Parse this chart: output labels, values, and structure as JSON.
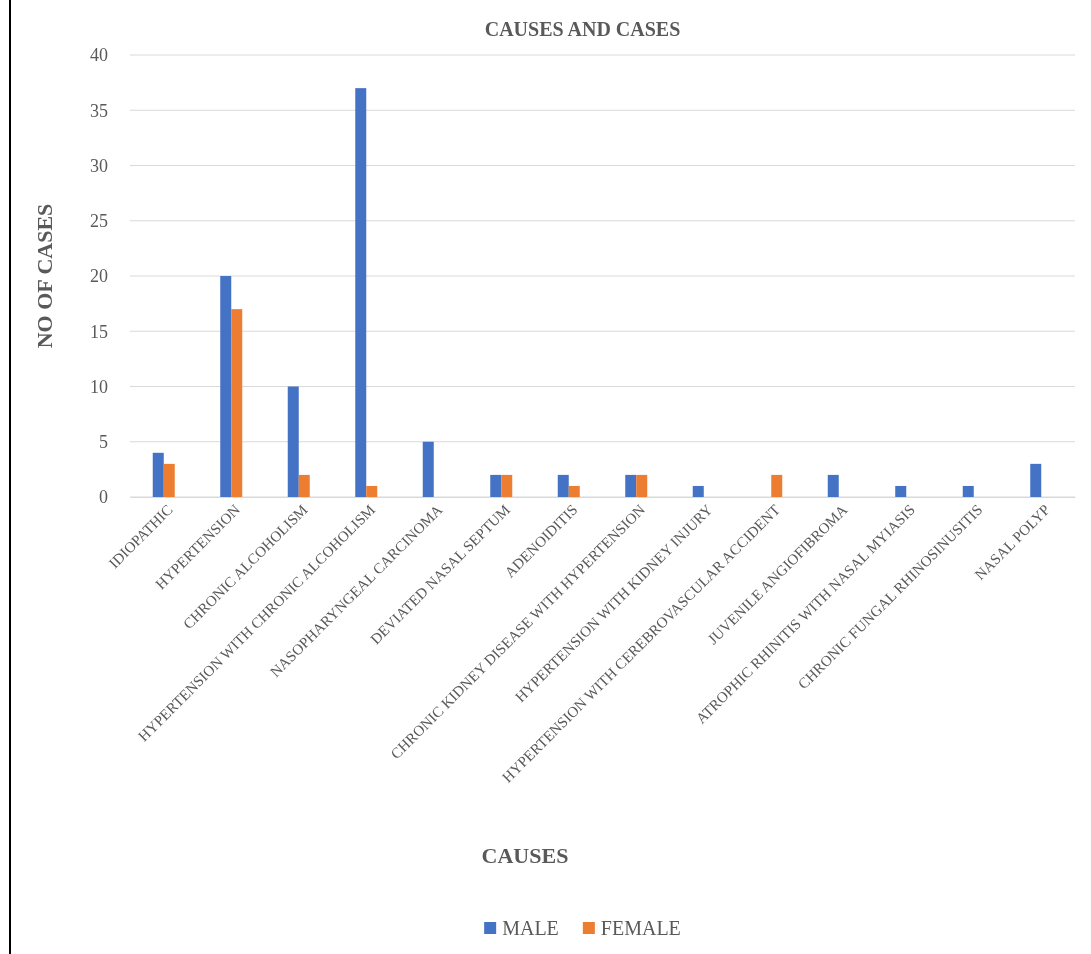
{
  "chart_data": {
    "type": "bar",
    "title": "CAUSES AND CASES",
    "xlabel": "CAUSES",
    "ylabel": "NO OF CASES",
    "categories": [
      "IDIOPATHIC",
      "HYPERTENSION",
      "CHRONIC ALCOHOLISM",
      "HYPERTENSION WITH CHRONIC ALCOHOLISM",
      "NASOPHARYNGEAL CARCINOMA",
      "DEVIATED NASAL SEPTUM",
      "ADENOIDITIS",
      "CHRONIC KIDNEY DISEASE WITH HYPERTENSION",
      "HYPERTENSION WITH KIDNEY INJURY",
      "HYPERTENSION WITH CEREBROVASCULAR ACCIDENT",
      "JUVENILE ANGIOFIBROMA",
      "ATROPHIC RHINITIS WITH NASAL MYIASIS",
      "CHRONIC FUNGAL RHINOSINUSITIS",
      "NASAL POLYP"
    ],
    "series": [
      {
        "name": "MALE",
        "color": "#4472c4",
        "values": [
          4,
          20,
          10,
          37,
          5,
          2,
          2,
          2,
          1,
          null,
          2,
          1,
          1,
          3
        ]
      },
      {
        "name": "FEMALE",
        "color": "#ed7d31",
        "values": [
          3,
          17,
          2,
          1,
          null,
          2,
          1,
          2,
          null,
          2,
          null,
          null,
          null,
          null
        ]
      }
    ],
    "ylim": [
      0,
      40
    ],
    "yticks": [
      0,
      5,
      10,
      15,
      20,
      25,
      30,
      35,
      40
    ],
    "grid": "y",
    "legend": "bottom"
  }
}
